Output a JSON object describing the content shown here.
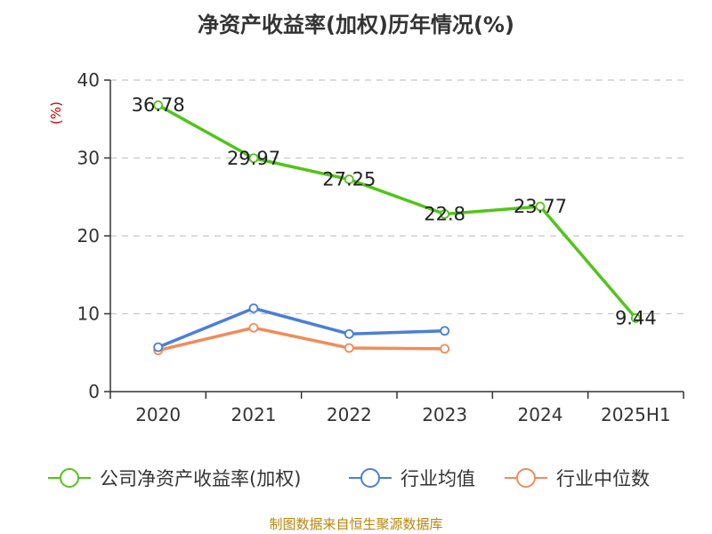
{
  "chart_data": {
    "type": "line",
    "title": "净资产收益率(加权)历年情况(%)",
    "ylabel": "(%)",
    "categories": [
      "2020",
      "2021",
      "2022",
      "2023",
      "2024",
      "2025H1"
    ],
    "ylim": [
      0,
      40
    ],
    "yticks": [
      0,
      10,
      20,
      30,
      40
    ],
    "grid": "horizontal dashed",
    "legend_position": "bottom",
    "series": [
      {
        "name": "公司净资产收益率(加权)",
        "color": "#52c41a",
        "values": [
          36.78,
          29.97,
          27.25,
          22.8,
          23.77,
          9.44
        ],
        "labels": [
          "36.78",
          "29.97",
          "27.25",
          "22.8",
          "23.77",
          "9.44"
        ]
      },
      {
        "name": "行业均值",
        "color": "#4a7fd6",
        "values": [
          5.7,
          10.7,
          7.4,
          7.8,
          null,
          null
        ]
      },
      {
        "name": "行业中位数",
        "color": "#f08c5a",
        "values": [
          5.3,
          8.2,
          5.6,
          5.5,
          null,
          null
        ]
      }
    ]
  },
  "source": "制图数据来自恒生聚源数据库"
}
